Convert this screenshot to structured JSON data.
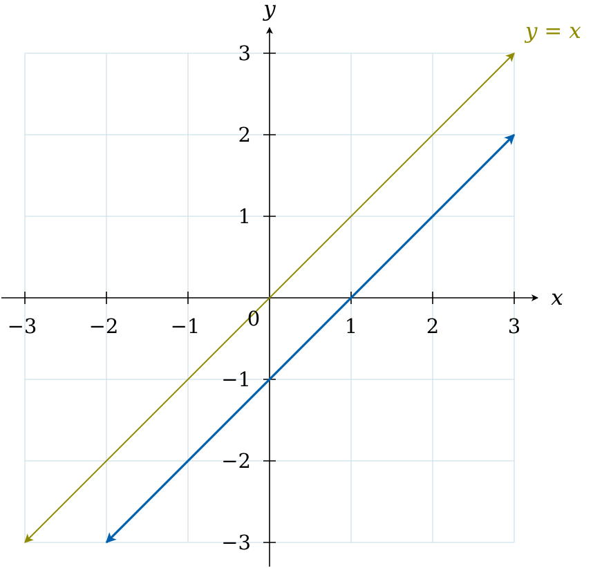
{
  "chart_data": {
    "type": "line",
    "title": "",
    "xlabel": "x",
    "ylabel": "y",
    "xlim": [
      -3,
      3
    ],
    "ylim": [
      -3,
      3
    ],
    "grid": true,
    "x_ticks": [
      -3,
      -2,
      -1,
      1,
      2,
      3
    ],
    "x_tick_labels": [
      "−3",
      "−2",
      "−1",
      "1",
      "2",
      "3"
    ],
    "y_ticks": [
      -3,
      -2,
      -1,
      1,
      2,
      3
    ],
    "y_tick_labels": [
      "−3",
      "−2",
      "−1",
      "1",
      "2",
      "3"
    ],
    "origin_label": "0",
    "series": [
      {
        "name": "y = x",
        "color": "#8f8a00",
        "x": [
          -3,
          3
        ],
        "y": [
          -3,
          3
        ],
        "arrows": "both"
      },
      {
        "color": "#0060b0",
        "x": [
          -2,
          3
        ],
        "y": [
          -3,
          2
        ],
        "arrows": "both"
      }
    ],
    "colors": {
      "grid": "#cfe0ec",
      "axis": "#000000"
    }
  }
}
